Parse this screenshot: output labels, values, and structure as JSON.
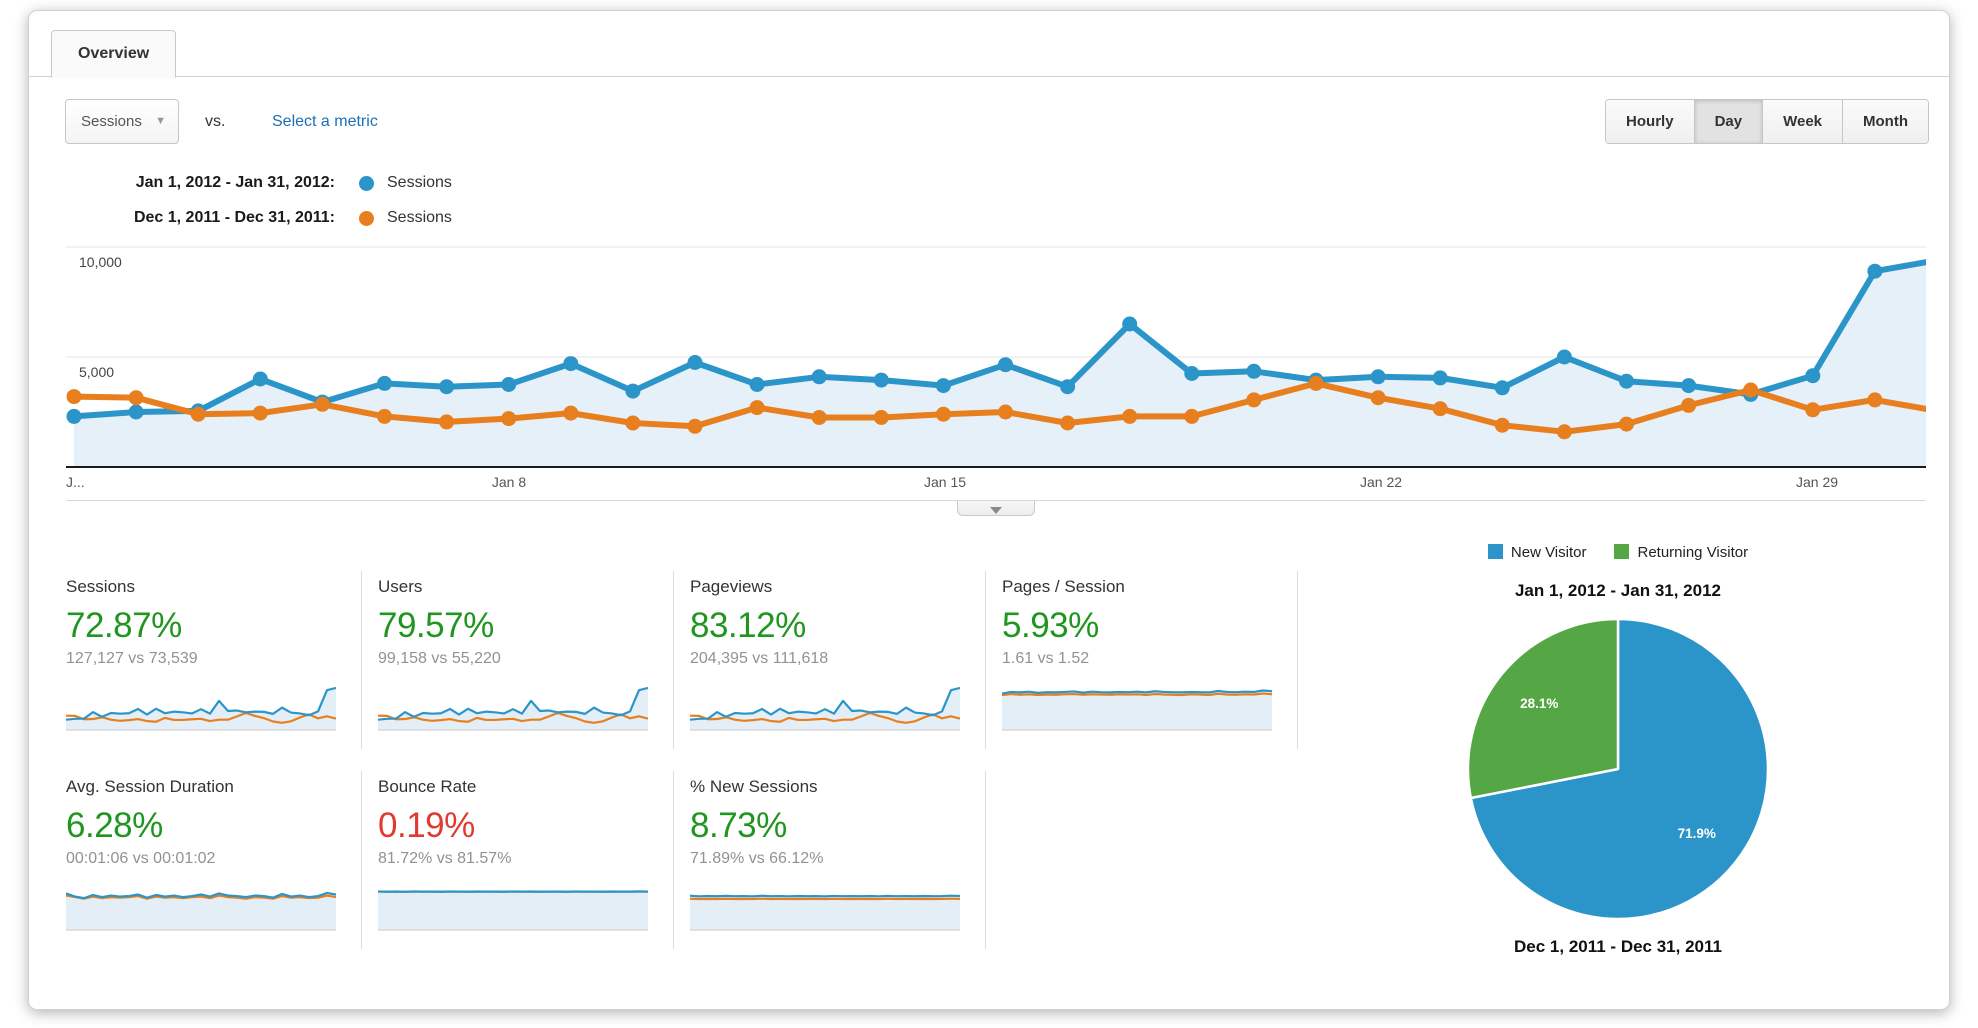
{
  "theme": {
    "series_blue": "#2b95c9",
    "series_orange": "#e87f1e",
    "area_fill": "#e6f0f8",
    "positive_green": "#1f961f",
    "negative_red": "#e03b30",
    "link_blue": "#1b6fb8",
    "pie_green": "#55a645"
  },
  "tab": {
    "label": "Overview"
  },
  "controls": {
    "metric_selector": {
      "value": "Sessions"
    },
    "vs_label": "vs.",
    "select_metric_link": "Select a metric",
    "granularity": {
      "options": [
        "Hourly",
        "Day",
        "Week",
        "Month"
      ],
      "selected": "Day"
    }
  },
  "legend": [
    {
      "range": "Jan 1, 2012 - Jan 31, 2012:",
      "series": "Sessions"
    },
    {
      "range": "Dec 1, 2011 - Dec 31, 2011:",
      "series": "Sessions"
    }
  ],
  "chart_data": [
    {
      "type": "line",
      "title": "Sessions by day, current vs previous period",
      "x_unit": "day",
      "x_tick_labels": [
        "J...",
        "Jan 8",
        "Jan 15",
        "Jan 22",
        "Jan 29"
      ],
      "x_tick_days": [
        1,
        8,
        15,
        22,
        29
      ],
      "ylim": [
        0,
        10500
      ],
      "y_ticks": [
        10000,
        5000
      ],
      "y_tick_display": [
        "10,000",
        "5,000"
      ],
      "grid": "horizontal",
      "series": [
        {
          "name": "Sessions",
          "range": "Jan 1, 2012 - Jan 31, 2012",
          "color": "#2b95c9",
          "area": true,
          "values": [
            2300,
            2500,
            2550,
            4000,
            2950,
            3800,
            3650,
            3750,
            4700,
            3450,
            4750,
            3750,
            4100,
            3950,
            3700,
            4650,
            3650,
            6500,
            4250,
            4350,
            3950,
            4100,
            4050,
            3600,
            5000,
            3900,
            3700,
            3300,
            4150,
            8900,
            9400
          ]
        },
        {
          "name": "Sessions",
          "range": "Dec 1, 2011 - Dec 31, 2011",
          "color": "#e87f1e",
          "area": false,
          "values": [
            3200,
            3150,
            2400,
            2450,
            2850,
            2300,
            2050,
            2200,
            2450,
            2000,
            1850,
            2700,
            2250,
            2250,
            2400,
            2500,
            2000,
            2300,
            2300,
            3050,
            3800,
            3150,
            2650,
            1900,
            1600,
            1950,
            2800,
            3500,
            2600,
            3050,
            2550
          ]
        }
      ]
    },
    {
      "type": "pie",
      "title": "Jan 1, 2012 - Jan 31, 2012",
      "footer": "Dec 1, 2011 - Dec 31, 2011",
      "legend": [
        {
          "label": "New Visitor",
          "color": "#2b95c9"
        },
        {
          "label": "Returning Visitor",
          "color": "#55a645"
        }
      ],
      "slices": [
        {
          "label": "New Visitor",
          "value": 71.9,
          "display": "71.9%",
          "color": "#2b95c9"
        },
        {
          "label": "Returning Visitor",
          "value": 28.1,
          "display": "28.1%",
          "color": "#55a645"
        }
      ],
      "start_angle": "top",
      "direction": "clockwise"
    }
  ],
  "metrics": {
    "rows": [
      [
        {
          "title": "Sessions",
          "change": "72.87%",
          "trend": "positive",
          "comparison": "127,127 vs 73,539",
          "sparkline": {
            "max": 10500,
            "source": "timeline"
          }
        },
        {
          "title": "Users",
          "change": "79.57%",
          "trend": "positive",
          "comparison": "99,158 vs 55,220",
          "sparkline": {
            "max": 10500,
            "source": "timeline"
          }
        },
        {
          "title": "Pageviews",
          "change": "83.12%",
          "trend": "positive",
          "comparison": "204,395 vs 111,618",
          "sparkline": {
            "max": 10500,
            "source": "timeline"
          }
        },
        {
          "title": "Pages / Session",
          "change": "5.93%",
          "trend": "positive",
          "comparison": "1.61 vs 1.52",
          "sparkline": {
            "max": 2,
            "current": [
              1.55,
              1.62,
              1.6,
              1.63,
              1.58,
              1.61,
              1.6,
              1.62,
              1.64,
              1.59,
              1.63,
              1.61,
              1.6,
              1.62,
              1.61,
              1.63,
              1.6,
              1.65,
              1.62,
              1.61,
              1.6,
              1.62,
              1.61,
              1.6,
              1.66,
              1.62,
              1.61,
              1.63,
              1.62,
              1.68,
              1.65
            ],
            "previous": [
              1.48,
              1.53,
              1.5,
              1.52,
              1.49,
              1.51,
              1.5,
              1.52,
              1.53,
              1.5,
              1.52,
              1.51,
              1.5,
              1.52,
              1.51,
              1.52,
              1.49,
              1.53,
              1.51,
              1.5,
              1.49,
              1.52,
              1.51,
              1.49,
              1.54,
              1.51,
              1.5,
              1.52,
              1.51,
              1.55,
              1.52
            ]
          }
        }
      ],
      [
        {
          "title": "Avg. Session Duration",
          "change": "6.28%",
          "trend": "positive",
          "comparison": "00:01:06 vs 00:01:02",
          "sparkline": {
            "max": 90,
            "current": [
              70,
              64,
              61,
              67,
              63,
              66,
              64,
              65,
              68,
              62,
              67,
              64,
              66,
              63,
              65,
              68,
              64,
              70,
              66,
              65,
              63,
              66,
              65,
              62,
              69,
              64,
              66,
              63,
              65,
              71,
              68
            ],
            "previous": [
              66,
              63,
              60,
              64,
              61,
              63,
              62,
              63,
              65,
              60,
              64,
              62,
              63,
              61,
              63,
              64,
              61,
              66,
              63,
              62,
              60,
              63,
              62,
              60,
              65,
              62,
              63,
              61,
              62,
              66,
              63
            ]
          }
        },
        {
          "title": "Bounce Rate",
          "change": "0.19%",
          "trend": "negative",
          "comparison": "81.72% vs 81.57%",
          "sparkline": {
            "max": 100,
            "current": [
              82,
              81.5,
              81.9,
              81.3,
              82.1,
              81.6,
              81.8,
              81.4,
              82,
              81.7,
              81.5,
              81.9,
              81.6,
              81.8,
              81.4,
              82,
              81.6,
              81.9,
              81.5,
              81.7,
              81.8,
              81.4,
              82,
              81.6,
              81.8,
              81.5,
              81.9,
              81.6,
              81.7,
              82.1,
              81.8
            ],
            "previous": [
              81.8,
              81.4,
              81.7,
              81.2,
              81.9,
              81.5,
              81.7,
              81.3,
              81.8,
              81.6,
              81.4,
              81.7,
              81.5,
              81.6,
              81.3,
              81.8,
              81.5,
              81.7,
              81.4,
              81.6,
              81.6,
              81.3,
              81.8,
              81.5,
              81.6,
              81.4,
              81.7,
              81.5,
              81.6,
              81.9,
              81.6
            ]
          }
        },
        {
          "title": "% New Sessions",
          "change": "8.73%",
          "trend": "positive",
          "comparison": "71.89% vs 66.12%",
          "sparkline": {
            "max": 100,
            "current": [
              73,
              71.5,
              72.3,
              71.8,
              72.6,
              71.9,
              72.2,
              71.6,
              72.8,
              71.9,
              72.1,
              71.7,
              72.4,
              71.8,
              72,
              71.6,
              72.5,
              71.9,
              72.2,
              71.8,
              72.3,
              71.7,
              72.6,
              71.9,
              72.1,
              71.8,
              72.4,
              71.9,
              72.2,
              73,
              72.5
            ],
            "previous": [
              66.5,
              65.8,
              66.2,
              65.9,
              66.4,
              66,
              66.2,
              65.8,
              66.6,
              66,
              66.1,
              65.9,
              66.3,
              66,
              66.1,
              65.8,
              66.4,
              66,
              66.2,
              65.9,
              66.3,
              65.8,
              66.5,
              66,
              66.1,
              65.9,
              66.3,
              66,
              66.2,
              66.6,
              66.3
            ]
          }
        }
      ]
    ]
  }
}
